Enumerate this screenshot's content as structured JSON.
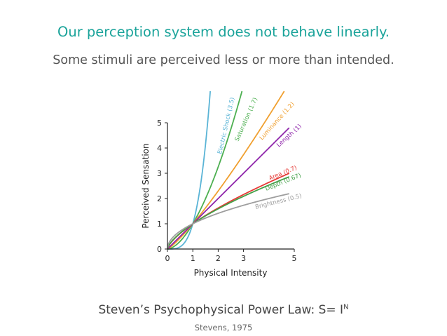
{
  "slide": {
    "headline": "Our perception system does not behave linearly.",
    "subheadline": "Some stimuli are perceived less or more than intended.",
    "caption_main": "Steven’s Psychophysical Power Law: S= I",
    "caption_superscript": "N",
    "citation": "Stevens, 1975"
  },
  "chart_data": {
    "type": "line",
    "xlabel": "Physical Intensity",
    "ylabel": "Perceived Sensation",
    "xlim": [
      0,
      5
    ],
    "ylim": [
      0,
      5
    ],
    "x_ticks": [
      "0",
      "1",
      "2",
      "3",
      "5"
    ],
    "y_ticks": [
      "0",
      "1",
      "2",
      "3",
      "4",
      "5"
    ],
    "grid": false,
    "legend": "inline labels at line ends",
    "series": [
      {
        "name": "Electric Shock (3.5)",
        "exponent": 3.5,
        "color": "#5ab4d6"
      },
      {
        "name": "Saturation (1.7)",
        "exponent": 1.7,
        "color": "#4caf50"
      },
      {
        "name": "Luminance (1.2)",
        "exponent": 1.2,
        "color": "#f0a030"
      },
      {
        "name": "Length (1)",
        "exponent": 1.0,
        "color": "#8e24aa"
      },
      {
        "name": "Area (0.7)",
        "exponent": 0.7,
        "color": "#e53935"
      },
      {
        "name": "Depth (0.67)",
        "exponent": 0.67,
        "color": "#43a047"
      },
      {
        "name": "Brightness (0.5)",
        "exponent": 0.5,
        "color": "#9e9e9e"
      }
    ]
  }
}
